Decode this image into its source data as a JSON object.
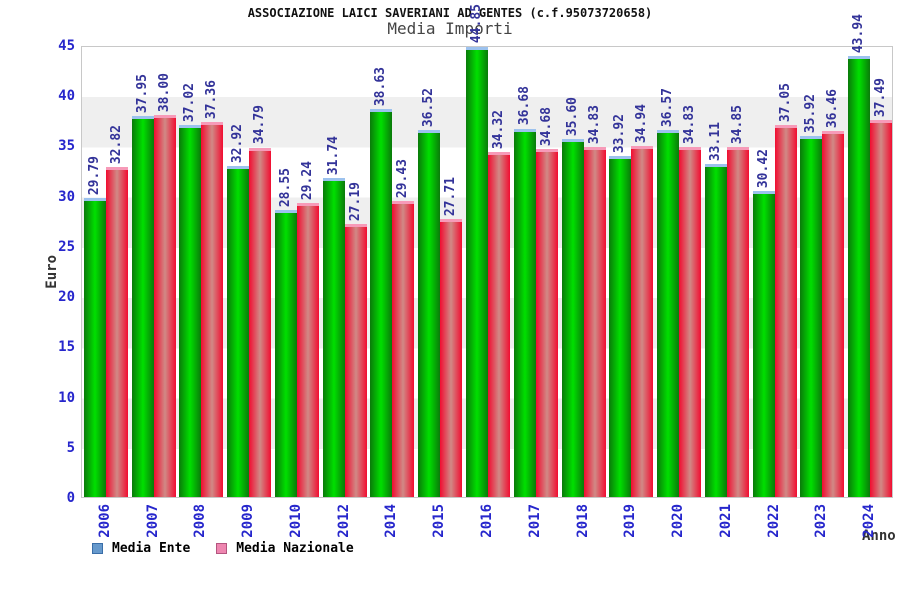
{
  "header": {
    "title": "ASSOCIAZIONE LAICI SAVERIANI AD GENTES (c.f.95073720658)",
    "subtitle": "Media Importi"
  },
  "chart_data": {
    "type": "bar",
    "title": "ASSOCIAZIONE LAICI SAVERIANI AD GENTES (c.f.95073720658)",
    "subtitle": "Media Importi",
    "xlabel": "Anno",
    "ylabel": "Euro",
    "ylim": [
      0,
      45
    ],
    "ytick_step": 5,
    "grid_bands": true,
    "legend_position": "bottom-left",
    "categories": [
      "2006",
      "2007",
      "2008",
      "2009",
      "2010",
      "2012",
      "2014",
      "2015",
      "2016",
      "2017",
      "2018",
      "2019",
      "2020",
      "2021",
      "2022",
      "2023",
      "2024"
    ],
    "series": [
      {
        "name": "Media Ente",
        "values": [
          29.79,
          37.95,
          37.02,
          32.92,
          28.55,
          31.74,
          38.63,
          36.52,
          44.85,
          36.68,
          35.6,
          33.92,
          36.57,
          33.11,
          30.42,
          35.92,
          43.94
        ],
        "legend_swatch": "#6699cc",
        "legend_swatch_border": "#3a6ea8",
        "bar_edge": "#0a7a0a",
        "bar_center": "#00e000",
        "bar_cap": "#9cc2ee"
      },
      {
        "name": "Media Nazionale",
        "values": [
          32.82,
          38.0,
          37.36,
          34.79,
          29.24,
          27.19,
          29.43,
          27.71,
          34.32,
          34.68,
          34.83,
          34.94,
          34.83,
          34.85,
          37.05,
          36.46,
          37.49
        ],
        "legend_swatch": "#ee86b0",
        "legend_swatch_border": "#b4557f",
        "bar_edge": "#f20c30",
        "bar_center": "#d08a86",
        "bar_cap": "#f79ab8"
      }
    ]
  },
  "colors": {
    "value_label": "#333399",
    "axis_tick": "#2626cc",
    "band_light": "#ffffff",
    "band_dark": "#efefef",
    "plot_border": "#c8c8c8",
    "text_dark": "#333333"
  }
}
